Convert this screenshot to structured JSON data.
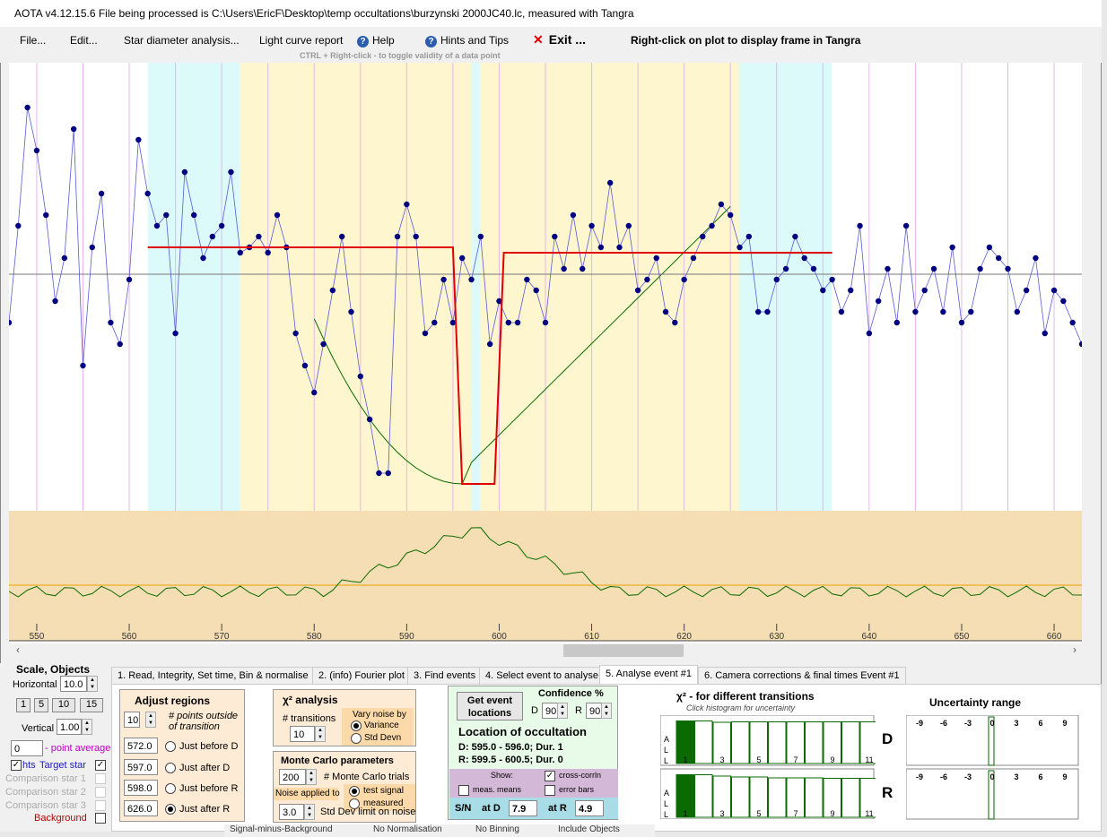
{
  "window": {
    "title": "AOTA v4.12.15.6    File being processed is C:\\Users\\EricF\\Desktop\\temp occultations\\burzynski 2000JC40.lc, measured with Tangra"
  },
  "menu": {
    "file": "File...",
    "edit": "Edit...",
    "star_diameter": "Star diameter analysis...",
    "light_curve_report": "Light curve report",
    "help": "Help",
    "hints": "Hints and Tips",
    "exit": "Exit ...",
    "right_click_note": "Right-click on plot to display frame in Tangra",
    "ctrl_hint": "CTRL + Right-click  -  to toggle validity of a data point"
  },
  "plot": {
    "x_ticks": [
      "550",
      "560",
      "570",
      "580",
      "590",
      "600",
      "610",
      "620",
      "630",
      "640",
      "650",
      "660"
    ]
  },
  "chart_data": {
    "type": "line",
    "x_range": [
      547,
      663
    ],
    "series": [
      {
        "values_x": [
          547,
          548,
          549,
          550,
          551,
          552,
          553,
          554,
          555,
          556,
          557,
          558,
          559,
          560,
          561,
          562,
          563,
          564,
          565,
          566,
          567,
          568,
          569,
          570,
          571,
          572,
          573,
          574,
          575,
          576,
          577,
          578,
          579,
          580,
          581,
          582,
          583,
          584,
          585,
          586,
          587,
          588,
          589,
          590,
          591,
          592,
          593,
          594,
          595,
          596,
          597,
          598,
          599,
          600,
          601,
          602,
          603,
          604,
          605,
          606,
          607,
          608,
          609,
          610,
          611,
          612,
          613,
          614,
          615,
          616,
          617,
          618,
          619,
          620,
          621,
          622,
          623,
          624,
          625,
          626,
          627,
          628,
          629,
          630,
          631,
          632,
          633,
          634,
          635,
          636,
          637,
          638,
          639,
          640,
          641,
          642,
          643,
          644,
          645,
          646,
          647,
          648,
          649,
          650,
          651,
          652,
          653,
          654,
          655,
          656,
          657,
          658,
          659,
          660,
          661,
          662,
          663
        ],
        "values_y": [
          0.6,
          0.78,
          1.0,
          0.92,
          0.8,
          0.64,
          0.72,
          0.96,
          0.52,
          0.74,
          0.84,
          0.6,
          0.56,
          0.68,
          0.94,
          0.84,
          0.78,
          0.8,
          0.58,
          0.88,
          0.8,
          0.72,
          0.76,
          0.78,
          0.88,
          0.73,
          0.74,
          0.76,
          0.73,
          0.8,
          0.74,
          0.58,
          0.52,
          0.47,
          0.56,
          0.66,
          0.76,
          0.62,
          0.5,
          0.42,
          0.32,
          0.32,
          0.76,
          0.82,
          0.76,
          0.58,
          0.6,
          0.68,
          0.6,
          0.72,
          0.68,
          0.76,
          0.56,
          0.64,
          0.6,
          0.6,
          0.68,
          0.66,
          0.6,
          0.76,
          0.7,
          0.8,
          0.7,
          0.78,
          0.74,
          0.86,
          0.74,
          0.78,
          0.66,
          0.68,
          0.72,
          0.62,
          0.6,
          0.68,
          0.72,
          0.76,
          0.78,
          0.82,
          0.8,
          0.74,
          0.76,
          0.62,
          0.62,
          0.68,
          0.7,
          0.76,
          0.72,
          0.7,
          0.66,
          0.68,
          0.62,
          0.66,
          0.78,
          0.58,
          0.64,
          0.7,
          0.6,
          0.78,
          0.62,
          0.66,
          0.7,
          0.62,
          0.74,
          0.6,
          0.62,
          0.7,
          0.74,
          0.72,
          0.7,
          0.62,
          0.66,
          0.72,
          0.58,
          0.66,
          0.64,
          0.6,
          0.56
        ]
      },
      {
        "values_x": [
          595.0,
          596.0,
          599.5,
          600.5
        ],
        "values_y": [
          0.74,
          0.3,
          0.3,
          0.73
        ]
      }
    ]
  },
  "left": {
    "scale_title": "Scale, Objects",
    "horizontal_label": "Horizontal",
    "horizontal_value": "10.0",
    "preset1": "1",
    "preset5": "5",
    "preset10": "10",
    "preset15": "15",
    "vertical_label": "Vertical",
    "vertical_value": "1.00",
    "point_avg_value": "0",
    "point_avg_label": "- point average",
    "lights": "hts",
    "target_star": "Target star",
    "comp1": "Comparison star 1",
    "comp2": "Comparison star 2",
    "comp3": "Comparison star 3",
    "background": "Background"
  },
  "tabs": [
    "1. Read, Integrity, Set time, Bin & normalise",
    "2. (info)  Fourier plot",
    "3. Find events",
    "4. Select event to analyse",
    "5. Analyse event #1",
    "6. Camera corrections & final times Event #1"
  ],
  "adjust": {
    "title": "Adjust regions",
    "points_value": "10",
    "points_label": "# points outside",
    "points_label2": "of transition",
    "v1": "572.0",
    "l1": "Just before D",
    "v2": "597.0",
    "l2": "Just after D",
    "v3": "598.0",
    "l3": "Just before R",
    "v4": "626.0",
    "l4": "Just after R"
  },
  "chi": {
    "title": "χ² analysis",
    "transitions_label": "# transitions",
    "transitions_value": "10",
    "vary_label": "Vary noise by",
    "variance": "Variance",
    "stddevn": "Std Devn"
  },
  "monte": {
    "title": "Monte Carlo parameters",
    "trials_value": "200",
    "trials_label": "# Monte Carlo trials",
    "noise_applied": "Noise applied to",
    "test_signal": "test signal",
    "measured": "measured",
    "sd_value": "3.0",
    "sd_label": "Std Dev limit on noise"
  },
  "location": {
    "get_events": "Get event locations",
    "confidence": "Confidence %",
    "d_label": "D",
    "d_value": "90",
    "r_label": "R",
    "r_value": "90",
    "title": "Location of occultation",
    "d_line": "D: 595.0 - 596.0; Dur. 1",
    "r_line": "R: 599.5 - 600.5; Dur. 0",
    "show": "Show:",
    "cross_corr": "cross-corrln",
    "meas_means": "meas. means",
    "error_bars": "error bars",
    "sn": "S/N",
    "at_d": "at D",
    "at_d_value": "7.9",
    "at_r": "at R",
    "at_r_value": "4.9"
  },
  "histo": {
    "title": "χ² - for different transitions",
    "subtitle": "Click histogram for uncertainty",
    "all_label": "ALL",
    "ticks": [
      "1",
      "3",
      "5",
      "7",
      "9",
      "11"
    ],
    "d_label": "D",
    "r_label": "R",
    "d_bars": [
      0.95,
      0.95,
      0.92,
      0.93,
      0.93,
      0.93,
      0.93,
      0.93,
      0.93,
      0.93,
      0.93
    ],
    "r_bars": [
      0.95,
      0.95,
      0.92,
      0.9,
      0.9,
      0.88,
      0.88,
      0.88,
      0.87,
      0.87,
      0.87
    ]
  },
  "uncert": {
    "title": "Uncertainty range",
    "ticks": [
      "-9",
      "-6",
      "-3",
      "0",
      "3",
      "6",
      "9"
    ]
  },
  "bottom": {
    "signal": "Signal-minus-Background",
    "norm": "No Normalisation",
    "binning": "No Binning",
    "include": "Include Objects"
  },
  "colors": {
    "accent_red": "#e00000",
    "data_blue": "#000080",
    "chart_cyan": "#dcfafa",
    "chart_yellow": "#fdf6cf",
    "lower_tan": "#f5deb3",
    "green": "#006400"
  }
}
